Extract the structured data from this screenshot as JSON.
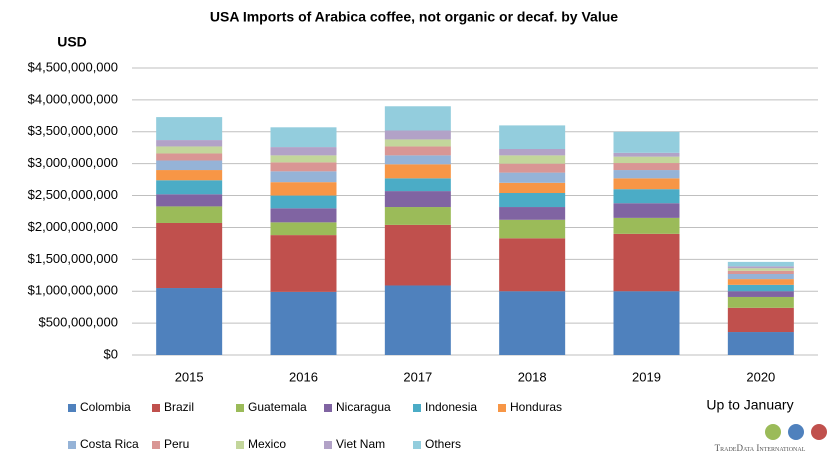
{
  "chart_data": {
    "type": "stacked_bar",
    "title": "USA Imports of Arabica coffee, not organic or decaf. by Value",
    "y_label": "USD",
    "annotation": "Up to January",
    "logo_text": "TradeData International",
    "categories": [
      "2015",
      "2016",
      "2017",
      "2018",
      "2019",
      "2020"
    ],
    "series": [
      {
        "name": "Colombia",
        "color": "#4F81BD",
        "values": [
          1050000000,
          990000000,
          1090000000,
          1000000000,
          1000000000,
          360000000
        ]
      },
      {
        "name": "Brazil",
        "color": "#C0504D",
        "values": [
          1020000000,
          890000000,
          950000000,
          830000000,
          900000000,
          380000000
        ]
      },
      {
        "name": "Guatemala",
        "color": "#9BBB59",
        "values": [
          260000000,
          200000000,
          280000000,
          290000000,
          250000000,
          170000000
        ]
      },
      {
        "name": "Nicaragua",
        "color": "#8064A2",
        "values": [
          190000000,
          220000000,
          250000000,
          200000000,
          230000000,
          90000000
        ]
      },
      {
        "name": "Indonesia",
        "color": "#4BACC6",
        "values": [
          220000000,
          200000000,
          200000000,
          220000000,
          220000000,
          100000000
        ]
      },
      {
        "name": "Honduras",
        "color": "#F79646",
        "values": [
          160000000,
          210000000,
          220000000,
          160000000,
          170000000,
          90000000
        ]
      },
      {
        "name": "Costa Rica",
        "color": "#95B3D7",
        "values": [
          150000000,
          170000000,
          140000000,
          160000000,
          130000000,
          80000000
        ]
      },
      {
        "name": "Peru",
        "color": "#D99694",
        "values": [
          110000000,
          140000000,
          140000000,
          140000000,
          110000000,
          50000000
        ]
      },
      {
        "name": "Mexico",
        "color": "#C3D69B",
        "values": [
          110000000,
          110000000,
          110000000,
          130000000,
          100000000,
          40000000
        ]
      },
      {
        "name": "Viet Nam",
        "color": "#B2A2C7",
        "values": [
          100000000,
          130000000,
          140000000,
          100000000,
          60000000,
          30000000
        ]
      },
      {
        "name": "Others",
        "color": "#93CDDD",
        "values": [
          360000000,
          310000000,
          380000000,
          370000000,
          330000000,
          70000000
        ]
      }
    ],
    "ylim": [
      0,
      4500000000
    ],
    "yticks": [
      {
        "value": 0,
        "label": "$0"
      },
      {
        "value": 500000000,
        "label": "$500,000,000"
      },
      {
        "value": 1000000000,
        "label": "$1,000,000,000"
      },
      {
        "value": 1500000000,
        "label": "$1,500,000,000"
      },
      {
        "value": 2000000000,
        "label": "$2,000,000,000"
      },
      {
        "value": 2500000000,
        "label": "$2,500,000,000"
      },
      {
        "value": 3000000000,
        "label": "$3,000,000,000"
      },
      {
        "value": 3500000000,
        "label": "$3,500,000,000"
      },
      {
        "value": 4000000000,
        "label": "$4,000,000,000"
      },
      {
        "value": 4500000000,
        "label": "$4,500,000,000"
      }
    ],
    "grid": true
  }
}
